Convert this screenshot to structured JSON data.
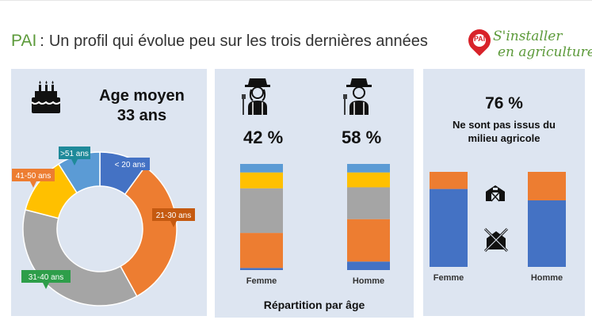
{
  "header": {
    "prefix": "PAI",
    "colon": ":",
    "title": "Un profil qui évolue peu sur les trois dernières années"
  },
  "logo": {
    "badge": "PAI",
    "line1": "S'installer",
    "line2": "en agriculture"
  },
  "colors": {
    "panel": "#dde5f1",
    "blue": "#4472c4",
    "orange": "#ed7d31",
    "gray": "#a5a5a5",
    "yellow": "#ffc000",
    "lightblue": "#5b9bd5",
    "green": "#5c9a3a"
  },
  "age_panel": {
    "title_line1": "Age moyen",
    "title_line2": "33 ans"
  },
  "gender_panel": {
    "femme_pct": "42 %",
    "homme_pct": "58 %",
    "footer": "Répartition par âge"
  },
  "origin_panel": {
    "pct": "76 %",
    "text_line1": "Ne sont pas issus du",
    "text_line2": "milieu agricole"
  },
  "chart_data": [
    {
      "type": "pie",
      "variant": "donut",
      "categories": [
        "< 20 ans",
        "21-30 ans",
        "31-40 ans",
        "41-50 ans",
        ">51 ans"
      ],
      "values": [
        10,
        32,
        37,
        12,
        9
      ],
      "colors": [
        "#4472c4",
        "#ed7d31",
        "#a5a5a5",
        "#ffc000",
        "#5b9bd5"
      ]
    },
    {
      "type": "bar",
      "stacked": true,
      "categories": [
        "Femme",
        "Homme"
      ],
      "series": [
        {
          "values": [
            2,
            8
          ],
          "color": "#4472c4"
        },
        {
          "values": [
            33,
            40
          ],
          "color": "#ed7d31"
        },
        {
          "values": [
            42,
            30
          ],
          "color": "#a5a5a5"
        },
        {
          "values": [
            15,
            14
          ],
          "color": "#ffc000"
        },
        {
          "values": [
            8,
            8
          ],
          "color": "#5b9bd5"
        }
      ],
      "footer": "Répartition par âge"
    },
    {
      "type": "bar",
      "stacked": true,
      "categories": [
        "Femme",
        "Homme"
      ],
      "series": [
        {
          "values": [
            82,
            70
          ],
          "color": "#4472c4"
        },
        {
          "values": [
            18,
            30
          ],
          "color": "#ed7d31"
        }
      ]
    }
  ]
}
